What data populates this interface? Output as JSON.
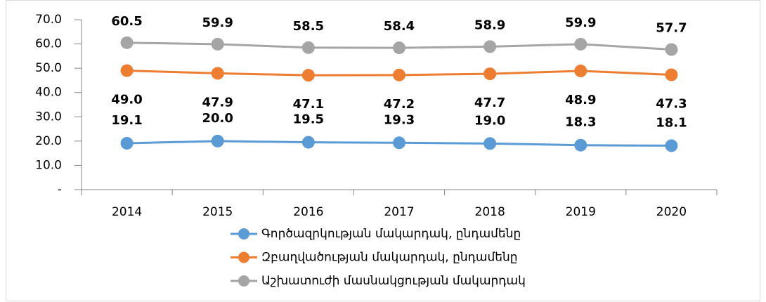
{
  "chart_data": {
    "type": "line",
    "categories": [
      "2014",
      "2015",
      "2016",
      "2017",
      "2018",
      "2019",
      "2020"
    ],
    "series": [
      {
        "name": "Գործազրկության մակարդակ, ընդամենը",
        "color": "#5b9bd5",
        "values": [
          19.1,
          20.0,
          19.5,
          19.3,
          19.0,
          18.3,
          18.1
        ],
        "value_labels": [
          "19.1",
          "20.0",
          "19.5",
          "19.3",
          "19.0",
          "18.3",
          "18.1"
        ]
      },
      {
        "name": "Զբաղվածության մակարդակ, ընդամենը",
        "color": "#ed7d31",
        "values": [
          49.0,
          47.9,
          47.1,
          47.2,
          47.7,
          48.9,
          47.3
        ],
        "value_labels": [
          "49.0",
          "47.9",
          "47.1",
          "47.2",
          "47.7",
          "48.9",
          "47.3"
        ]
      },
      {
        "name": "Աշխատուժի մասնակցության մակարդակ",
        "color": "#a5a5a5",
        "values": [
          60.5,
          59.9,
          58.5,
          58.4,
          58.9,
          59.9,
          57.7
        ],
        "value_labels": [
          "60.5",
          "59.9",
          "58.5",
          "58.4",
          "58.9",
          "59.9",
          "57.7"
        ]
      }
    ],
    "ylim": [
      0,
      70
    ],
    "yticks": [
      {
        "value": 0,
        "label": "-"
      },
      {
        "value": 10,
        "label": "10.0"
      },
      {
        "value": 20,
        "label": "20.0"
      },
      {
        "value": 30,
        "label": "30.0"
      },
      {
        "value": 40,
        "label": "40.0"
      },
      {
        "value": 50,
        "label": "50.0"
      },
      {
        "value": 60,
        "label": "60.0"
      },
      {
        "value": 70,
        "label": "70.0"
      }
    ],
    "legend": "bottom"
  }
}
